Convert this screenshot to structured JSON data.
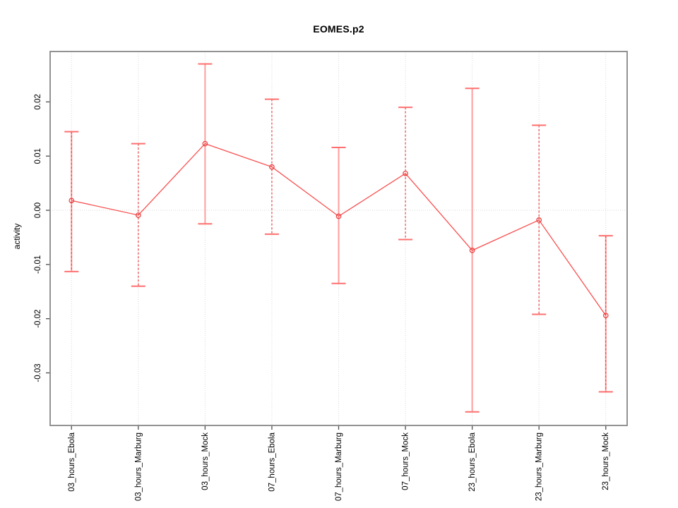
{
  "chart_data": {
    "type": "line",
    "title": "EOMES.p2",
    "ylabel": "activity",
    "xlabel": "",
    "legend": "none",
    "grid": "vertical dotted line at each category; horizontal dotted line at y=0",
    "categories": [
      "03_hours_Ebola",
      "03_hours_Marburg",
      "03_hours_Mock",
      "07_hours_Ebola",
      "07_hours_Marburg",
      "07_hours_Mock",
      "23_hours_Ebola",
      "23_hours_Marburg",
      "23_hours_Mock"
    ],
    "series": [
      {
        "name": "activity",
        "values": [
          0.0018,
          -0.0009,
          0.0123,
          0.008,
          -0.0011,
          0.0068,
          -0.0074,
          -0.0018,
          -0.0194
        ],
        "ci_low": [
          -0.0113,
          -0.014,
          -0.0025,
          -0.0044,
          -0.0135,
          -0.0054,
          -0.0372,
          -0.0192,
          -0.0335
        ],
        "ci_high": [
          0.0145,
          0.0123,
          0.027,
          0.0205,
          0.0116,
          0.019,
          0.0225,
          0.0157,
          -0.0047
        ]
      }
    ],
    "error_bar_styles": [
      "both",
      "dashed",
      "solid",
      "dashed",
      "solid",
      "dashed",
      "solid",
      "dashed",
      "both"
    ],
    "ylim": [
      -0.0397,
      0.0293
    ],
    "xlim": [
      0.68,
      9.32
    ],
    "yticks": [
      0.02,
      0.01,
      0.0,
      -0.01,
      -0.02,
      -0.03
    ],
    "ytick_labels": [
      "0.02",
      "0.01",
      "0.00",
      "-0.01",
      "-0.02",
      "-0.03"
    ],
    "colors": {
      "point": "#e84545",
      "series_line": "#f94f4f",
      "error_bar_solid": "#ff9c9c",
      "error_bar_dashed": "#e84545",
      "error_bar_cap": "#ff6f6f",
      "gridline": "#d9d9d9",
      "plot_border": "#878787",
      "axis_tick": "#4d4d4d",
      "text": "#000000",
      "background": "#ffffff"
    }
  }
}
